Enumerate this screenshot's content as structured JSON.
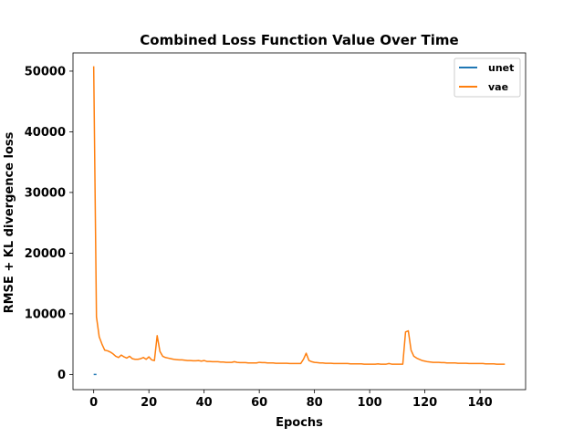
{
  "chart_data": {
    "type": "line",
    "title": "Combined Loss Function Value Over Time",
    "xlabel": "Epochs",
    "ylabel": "RMSE + KL divergence loss",
    "xlim": [
      -7.5,
      156.5
    ],
    "ylim": [
      -2500,
      53000
    ],
    "xticks": [
      0,
      20,
      40,
      60,
      80,
      100,
      120,
      140
    ],
    "yticks": [
      0,
      10000,
      20000,
      30000,
      40000,
      50000
    ],
    "grid": false,
    "legend_position": "top-right",
    "series": [
      {
        "name": "unet",
        "color": "#1f77b4",
        "x": [
          0,
          1
        ],
        "y": [
          0,
          0
        ]
      },
      {
        "name": "vae",
        "color": "#ff7f0e",
        "x": [
          0,
          1,
          2,
          3,
          4,
          5,
          6,
          7,
          8,
          9,
          10,
          11,
          12,
          13,
          14,
          15,
          16,
          17,
          18,
          19,
          20,
          21,
          22,
          23,
          24,
          25,
          26,
          27,
          28,
          29,
          30,
          31,
          32,
          33,
          34,
          35,
          36,
          37,
          38,
          39,
          40,
          41,
          42,
          43,
          44,
          45,
          46,
          47,
          48,
          49,
          50,
          51,
          52,
          53,
          54,
          55,
          56,
          57,
          58,
          59,
          60,
          61,
          62,
          63,
          64,
          65,
          66,
          67,
          68,
          69,
          70,
          71,
          72,
          73,
          74,
          75,
          76,
          77,
          78,
          79,
          80,
          81,
          82,
          83,
          84,
          85,
          86,
          87,
          88,
          89,
          90,
          91,
          92,
          93,
          94,
          95,
          96,
          97,
          98,
          99,
          100,
          101,
          102,
          103,
          104,
          105,
          106,
          107,
          108,
          109,
          110,
          111,
          112,
          113,
          114,
          115,
          116,
          117,
          118,
          119,
          120,
          121,
          122,
          123,
          124,
          125,
          126,
          127,
          128,
          129,
          130,
          131,
          132,
          133,
          134,
          135,
          136,
          137,
          138,
          139,
          140,
          141,
          142,
          143,
          144,
          145,
          146,
          147,
          148,
          149
        ],
        "y": [
          50800,
          9500,
          6200,
          5000,
          4000,
          3900,
          3700,
          3400,
          3000,
          2800,
          3200,
          2900,
          2700,
          3000,
          2600,
          2500,
          2500,
          2600,
          2800,
          2500,
          2900,
          2400,
          2300,
          6400,
          3800,
          3000,
          2800,
          2700,
          2600,
          2500,
          2450,
          2400,
          2400,
          2350,
          2300,
          2300,
          2250,
          2250,
          2300,
          2200,
          2300,
          2150,
          2150,
          2100,
          2100,
          2100,
          2050,
          2050,
          2000,
          2000,
          2000,
          2100,
          2000,
          1950,
          1950,
          1950,
          1900,
          1900,
          1900,
          1900,
          2000,
          1950,
          1950,
          1900,
          1900,
          1900,
          1850,
          1850,
          1850,
          1850,
          1850,
          1800,
          1800,
          1800,
          1800,
          1800,
          2500,
          3500,
          2300,
          2100,
          2000,
          1950,
          1900,
          1900,
          1850,
          1850,
          1850,
          1800,
          1800,
          1800,
          1800,
          1800,
          1800,
          1750,
          1750,
          1750,
          1750,
          1750,
          1700,
          1700,
          1700,
          1700,
          1700,
          1750,
          1700,
          1700,
          1700,
          1800,
          1700,
          1700,
          1700,
          1700,
          1700,
          7000,
          7200,
          4000,
          3000,
          2700,
          2500,
          2300,
          2200,
          2100,
          2050,
          2000,
          2000,
          2000,
          1950,
          1950,
          1900,
          1900,
          1900,
          1900,
          1850,
          1850,
          1850,
          1850,
          1800,
          1800,
          1800,
          1800,
          1800,
          1800,
          1750,
          1750,
          1750,
          1750,
          1700,
          1700,
          1700,
          1700
        ]
      }
    ]
  }
}
